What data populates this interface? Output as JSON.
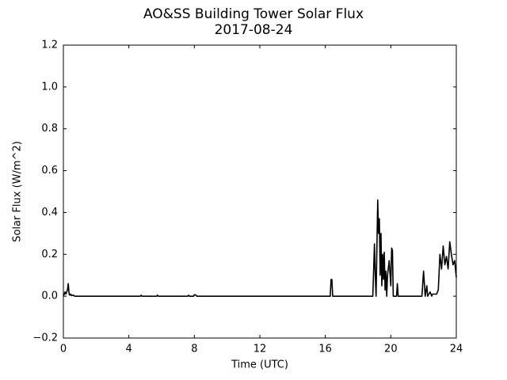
{
  "chart_data": {
    "type": "line",
    "title": "AO&SS Building Tower Solar Flux",
    "subtitle": "2017-08-24",
    "x_label": "Time (UTC)",
    "y_label": "Solar Flux (W/m^2)",
    "xlim": [
      0,
      24
    ],
    "ylim": [
      -0.2,
      1.2
    ],
    "xticks": [
      0,
      4,
      8,
      12,
      16,
      20,
      24
    ],
    "yticks": [
      {
        "value": -0.2,
        "label": "−0.2"
      },
      {
        "value": 0,
        "label": "0.0"
      },
      0.2,
      0.4,
      0.6,
      0.8,
      {
        "value": 1.0,
        "label": "1.0"
      },
      1.2
    ],
    "color": "#000000",
    "grid": false,
    "x": [
      0,
      0.1,
      0.15,
      0.25,
      0.3,
      0.35,
      0.4,
      0.45,
      0.5,
      0.6,
      0.7,
      4.7,
      4.75,
      4.8,
      5.7,
      5.75,
      5.8,
      7.6,
      7.65,
      7.7,
      7.95,
      8.0,
      8.1,
      8.15,
      16.3,
      16.35,
      16.4,
      16.45,
      18.9,
      19.0,
      19.05,
      19.1,
      19.2,
      19.25,
      19.3,
      19.35,
      19.4,
      19.45,
      19.5,
      19.55,
      19.6,
      19.65,
      19.7,
      19.75,
      19.8,
      19.9,
      20.0,
      20.05,
      20.1,
      20.15,
      20.2,
      20.35,
      20.4,
      20.45,
      21.9,
      22.0,
      22.05,
      22.1,
      22.2,
      22.25,
      22.4,
      22.5,
      22.55,
      22.8,
      22.9,
      23.0,
      23.1,
      23.2,
      23.3,
      23.4,
      23.5,
      23.6,
      23.7,
      23.8,
      23.9,
      24.0
    ],
    "values": [
      0,
      0.02,
      0.01,
      0.03,
      0.06,
      0.01,
      0.005,
      0.01,
      0.003,
      0.005,
      0,
      0,
      0.005,
      0,
      0,
      0.005,
      0,
      0,
      0.005,
      0,
      0,
      0.007,
      0.005,
      0,
      0,
      0.08,
      0.08,
      0,
      0,
      0.25,
      0.1,
      0,
      0.46,
      0.3,
      0.37,
      0.1,
      0.3,
      0.05,
      0.2,
      0.08,
      0.21,
      0.03,
      0.12,
      0,
      0.1,
      0.17,
      0.05,
      0.23,
      0.22,
      0,
      0,
      0,
      0.06,
      0,
      0,
      0.12,
      0.06,
      0,
      0.05,
      0,
      0.02,
      0,
      0.01,
      0.01,
      0.03,
      0.2,
      0.13,
      0.24,
      0.15,
      0.19,
      0.13,
      0.26,
      0.2,
      0.15,
      0.17,
      0.09
    ]
  }
}
